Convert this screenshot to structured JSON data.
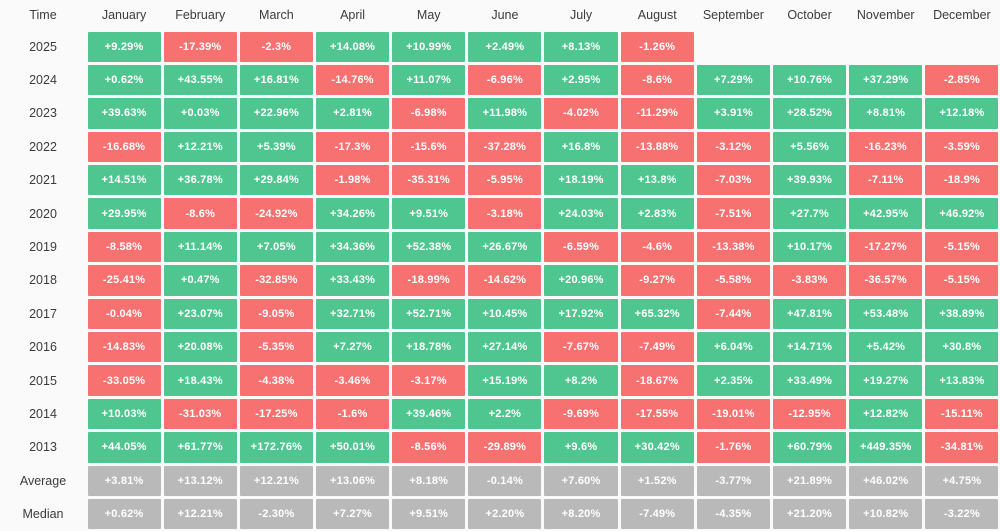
{
  "table": {
    "time_label": "Time",
    "months": [
      "January",
      "February",
      "March",
      "April",
      "May",
      "June",
      "July",
      "August",
      "September",
      "October",
      "November",
      "December"
    ],
    "rows": [
      {
        "label": "2025",
        "type": "year",
        "values": [
          "+9.29%",
          "-17.39%",
          "-2.3%",
          "+14.08%",
          "+10.99%",
          "+2.49%",
          "+8.13%",
          "-1.26%",
          "",
          "",
          "",
          ""
        ]
      },
      {
        "label": "2024",
        "type": "year",
        "values": [
          "+0.62%",
          "+43.55%",
          "+16.81%",
          "-14.76%",
          "+11.07%",
          "-6.96%",
          "+2.95%",
          "-8.6%",
          "+7.29%",
          "+10.76%",
          "+37.29%",
          "-2.85%"
        ]
      },
      {
        "label": "2023",
        "type": "year",
        "values": [
          "+39.63%",
          "+0.03%",
          "+22.96%",
          "+2.81%",
          "-6.98%",
          "+11.98%",
          "-4.02%",
          "-11.29%",
          "+3.91%",
          "+28.52%",
          "+8.81%",
          "+12.18%"
        ]
      },
      {
        "label": "2022",
        "type": "year",
        "values": [
          "-16.68%",
          "+12.21%",
          "+5.39%",
          "-17.3%",
          "-15.6%",
          "-37.28%",
          "+16.8%",
          "-13.88%",
          "-3.12%",
          "+5.56%",
          "-16.23%",
          "-3.59%"
        ]
      },
      {
        "label": "2021",
        "type": "year",
        "values": [
          "+14.51%",
          "+36.78%",
          "+29.84%",
          "-1.98%",
          "-35.31%",
          "-5.95%",
          "+18.19%",
          "+13.8%",
          "-7.03%",
          "+39.93%",
          "-7.11%",
          "-18.9%"
        ]
      },
      {
        "label": "2020",
        "type": "year",
        "values": [
          "+29.95%",
          "-8.6%",
          "-24.92%",
          "+34.26%",
          "+9.51%",
          "-3.18%",
          "+24.03%",
          "+2.83%",
          "-7.51%",
          "+27.7%",
          "+42.95%",
          "+46.92%"
        ]
      },
      {
        "label": "2019",
        "type": "year",
        "values": [
          "-8.58%",
          "+11.14%",
          "+7.05%",
          "+34.36%",
          "+52.38%",
          "+26.67%",
          "-6.59%",
          "-4.6%",
          "-13.38%",
          "+10.17%",
          "-17.27%",
          "-5.15%"
        ]
      },
      {
        "label": "2018",
        "type": "year",
        "values": [
          "-25.41%",
          "+0.47%",
          "-32.85%",
          "+33.43%",
          "-18.99%",
          "-14.62%",
          "+20.96%",
          "-9.27%",
          "-5.58%",
          "-3.83%",
          "-36.57%",
          "-5.15%"
        ]
      },
      {
        "label": "2017",
        "type": "year",
        "values": [
          "-0.04%",
          "+23.07%",
          "-9.05%",
          "+32.71%",
          "+52.71%",
          "+10.45%",
          "+17.92%",
          "+65.32%",
          "-7.44%",
          "+47.81%",
          "+53.48%",
          "+38.89%"
        ]
      },
      {
        "label": "2016",
        "type": "year",
        "values": [
          "-14.83%",
          "+20.08%",
          "-5.35%",
          "+7.27%",
          "+18.78%",
          "+27.14%",
          "-7.67%",
          "-7.49%",
          "+6.04%",
          "+14.71%",
          "+5.42%",
          "+30.8%"
        ]
      },
      {
        "label": "2015",
        "type": "year",
        "values": [
          "-33.05%",
          "+18.43%",
          "-4.38%",
          "-3.46%",
          "-3.17%",
          "+15.19%",
          "+8.2%",
          "-18.67%",
          "+2.35%",
          "+33.49%",
          "+19.27%",
          "+13.83%"
        ]
      },
      {
        "label": "2014",
        "type": "year",
        "values": [
          "+10.03%",
          "-31.03%",
          "-17.25%",
          "-1.6%",
          "+39.46%",
          "+2.2%",
          "-9.69%",
          "-17.55%",
          "-19.01%",
          "-12.95%",
          "+12.82%",
          "-15.11%"
        ]
      },
      {
        "label": "2013",
        "type": "year",
        "values": [
          "+44.05%",
          "+61.77%",
          "+172.76%",
          "+50.01%",
          "-8.56%",
          "-29.89%",
          "+9.6%",
          "+30.42%",
          "-1.76%",
          "+60.79%",
          "+449.35%",
          "-34.81%"
        ]
      },
      {
        "label": "Average",
        "type": "summary",
        "values": [
          "+3.81%",
          "+13.12%",
          "+12.21%",
          "+13.06%",
          "+8.18%",
          "-0.14%",
          "+7.60%",
          "+1.52%",
          "-3.77%",
          "+21.89%",
          "+46.02%",
          "+4.75%"
        ]
      },
      {
        "label": "Median",
        "type": "summary",
        "values": [
          "+0.62%",
          "+12.21%",
          "-2.30%",
          "+7.27%",
          "+9.51%",
          "+2.20%",
          "+8.20%",
          "-7.49%",
          "-4.35%",
          "+21.20%",
          "+10.82%",
          "-3.22%"
        ]
      }
    ]
  },
  "colors": {
    "positive": "#4fc690",
    "negative": "#f77171",
    "neutral": "#b9b9b9",
    "background": "#fafafa",
    "cell_text": "#ffffff",
    "label_text": "#3c3c3c"
  },
  "chart_data": {
    "type": "heatmap",
    "title": "Monthly returns (%) heatmap by year",
    "columns": [
      "January",
      "February",
      "March",
      "April",
      "May",
      "June",
      "July",
      "August",
      "September",
      "October",
      "November",
      "December"
    ],
    "rows": [
      "2025",
      "2024",
      "2023",
      "2022",
      "2021",
      "2020",
      "2019",
      "2018",
      "2017",
      "2016",
      "2015",
      "2014",
      "2013",
      "Average",
      "Median"
    ],
    "values": [
      [
        9.29,
        -17.39,
        -2.3,
        14.08,
        10.99,
        2.49,
        8.13,
        -1.26,
        null,
        null,
        null,
        null
      ],
      [
        0.62,
        43.55,
        16.81,
        -14.76,
        11.07,
        -6.96,
        2.95,
        -8.6,
        7.29,
        10.76,
        37.29,
        -2.85
      ],
      [
        39.63,
        0.03,
        22.96,
        2.81,
        -6.98,
        11.98,
        -4.02,
        -11.29,
        3.91,
        28.52,
        8.81,
        12.18
      ],
      [
        -16.68,
        12.21,
        5.39,
        -17.3,
        -15.6,
        -37.28,
        16.8,
        -13.88,
        -3.12,
        5.56,
        -16.23,
        -3.59
      ],
      [
        14.51,
        36.78,
        29.84,
        -1.98,
        -35.31,
        -5.95,
        18.19,
        13.8,
        -7.03,
        39.93,
        -7.11,
        -18.9
      ],
      [
        29.95,
        -8.6,
        -24.92,
        34.26,
        9.51,
        -3.18,
        24.03,
        2.83,
        -7.51,
        27.7,
        42.95,
        46.92
      ],
      [
        -8.58,
        11.14,
        7.05,
        34.36,
        52.38,
        26.67,
        -6.59,
        -4.6,
        -13.38,
        10.17,
        -17.27,
        -5.15
      ],
      [
        -25.41,
        0.47,
        -32.85,
        33.43,
        -18.99,
        -14.62,
        20.96,
        -9.27,
        -5.58,
        -3.83,
        -36.57,
        -5.15
      ],
      [
        -0.04,
        23.07,
        -9.05,
        32.71,
        52.71,
        10.45,
        17.92,
        65.32,
        -7.44,
        47.81,
        53.48,
        38.89
      ],
      [
        -14.83,
        20.08,
        -5.35,
        7.27,
        18.78,
        27.14,
        -7.67,
        -7.49,
        6.04,
        14.71,
        5.42,
        30.8
      ],
      [
        -33.05,
        18.43,
        -4.38,
        -3.46,
        -3.17,
        15.19,
        8.2,
        -18.67,
        2.35,
        33.49,
        19.27,
        13.83
      ],
      [
        10.03,
        -31.03,
        -17.25,
        -1.6,
        39.46,
        2.2,
        -9.69,
        -17.55,
        -19.01,
        -12.95,
        12.82,
        -15.11
      ],
      [
        44.05,
        61.77,
        172.76,
        50.01,
        -8.56,
        -29.89,
        9.6,
        30.42,
        -1.76,
        60.79,
        449.35,
        -34.81
      ],
      [
        3.81,
        13.12,
        12.21,
        13.06,
        8.18,
        -0.14,
        7.6,
        1.52,
        -3.77,
        21.89,
        46.02,
        4.75
      ],
      [
        0.62,
        12.21,
        -2.3,
        7.27,
        9.51,
        2.2,
        8.2,
        -7.49,
        -4.35,
        21.2,
        10.82,
        -3.22
      ]
    ],
    "color_rule": "positive=green, negative=red, summary rows (Average/Median)=gray",
    "legend_position": "none",
    "grid": false
  }
}
